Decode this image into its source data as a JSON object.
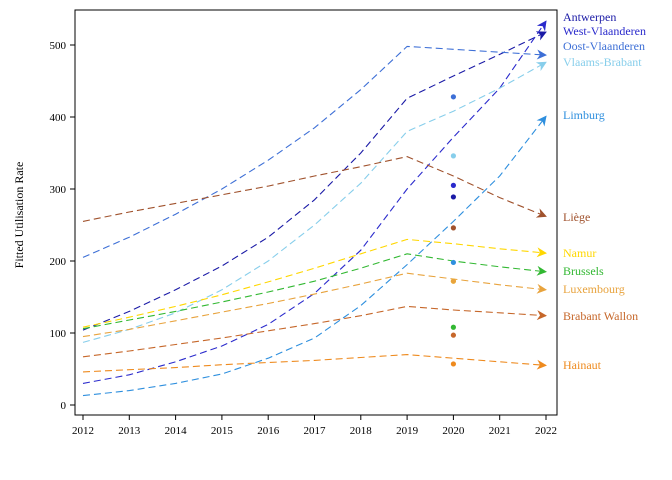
{
  "chart_data": {
    "type": "line",
    "title": "",
    "xlabel": "",
    "ylabel": "Fitted Utilisation Rate",
    "xlim": [
      2012,
      2022
    ],
    "ylim": [
      0,
      550
    ],
    "x_ticks": [
      2012,
      2013,
      2014,
      2015,
      2016,
      2017,
      2018,
      2019,
      2020,
      2021,
      2022
    ],
    "y_ticks": [
      0,
      100,
      200,
      300,
      400,
      500
    ],
    "grid": false,
    "legend": "inline-right",
    "line_style": "dashed",
    "x": [
      2012,
      2013,
      2014,
      2015,
      2016,
      2017,
      2018,
      2019,
      2020,
      2021,
      2022
    ],
    "series": [
      {
        "name": "Antwerpen",
        "color": "#1a1aa6",
        "values": [
          104,
          130,
          160,
          193,
          233,
          285,
          350,
          426,
          457,
          487,
          518
        ],
        "observed_2020": 289
      },
      {
        "name": "West-Vlaanderen",
        "color": "#2a2acc",
        "values": [
          30,
          42,
          60,
          82,
          112,
          155,
          215,
          300,
          372,
          440,
          533
        ],
        "observed_2020": 305
      },
      {
        "name": "Oost-Vlaanderen",
        "color": "#3d6fd6",
        "values": [
          205,
          233,
          265,
          300,
          340,
          385,
          438,
          498,
          494,
          490,
          486
        ],
        "observed_2020": 428
      },
      {
        "name": "Vlaams-Brabant",
        "color": "#87ceeb",
        "values": [
          87,
          105,
          128,
          160,
          200,
          250,
          308,
          380,
          408,
          440,
          476
        ],
        "observed_2020": 346
      },
      {
        "name": "Limburg",
        "color": "#2e8fde",
        "values": [
          13,
          20,
          30,
          43,
          65,
          93,
          138,
          195,
          255,
          318,
          401
        ],
        "observed_2020": 198
      },
      {
        "name": "Liège",
        "color": "#a0522d",
        "values": [
          255,
          268,
          280,
          292,
          304,
          318,
          331,
          345,
          318,
          288,
          262
        ],
        "observed_2020": 246
      },
      {
        "name": "Namur",
        "color": "#ffd700",
        "values": [
          108,
          122,
          137,
          153,
          171,
          190,
          210,
          230,
          224,
          217,
          211
        ],
        "observed_2020": 172
      },
      {
        "name": "Brussels",
        "color": "#32b832",
        "values": [
          106,
          118,
          130,
          143,
          157,
          172,
          190,
          210,
          200,
          192,
          185
        ],
        "observed_2020": 108
      },
      {
        "name": "Luxembourg",
        "color": "#e8a33d",
        "values": [
          95,
          105,
          117,
          129,
          141,
          154,
          168,
          183,
          175,
          167,
          160
        ],
        "observed_2020": 172
      },
      {
        "name": "Brabant Wallon",
        "color": "#c6672a",
        "values": [
          67,
          75,
          84,
          93,
          103,
          113,
          124,
          137,
          132,
          128,
          124
        ],
        "observed_2020": 97
      },
      {
        "name": "Hainaut",
        "color": "#ee8a1e",
        "values": [
          46,
          49,
          52,
          56,
          59,
          62,
          66,
          70,
          65,
          60,
          55
        ],
        "observed_2020": 57
      }
    ]
  }
}
